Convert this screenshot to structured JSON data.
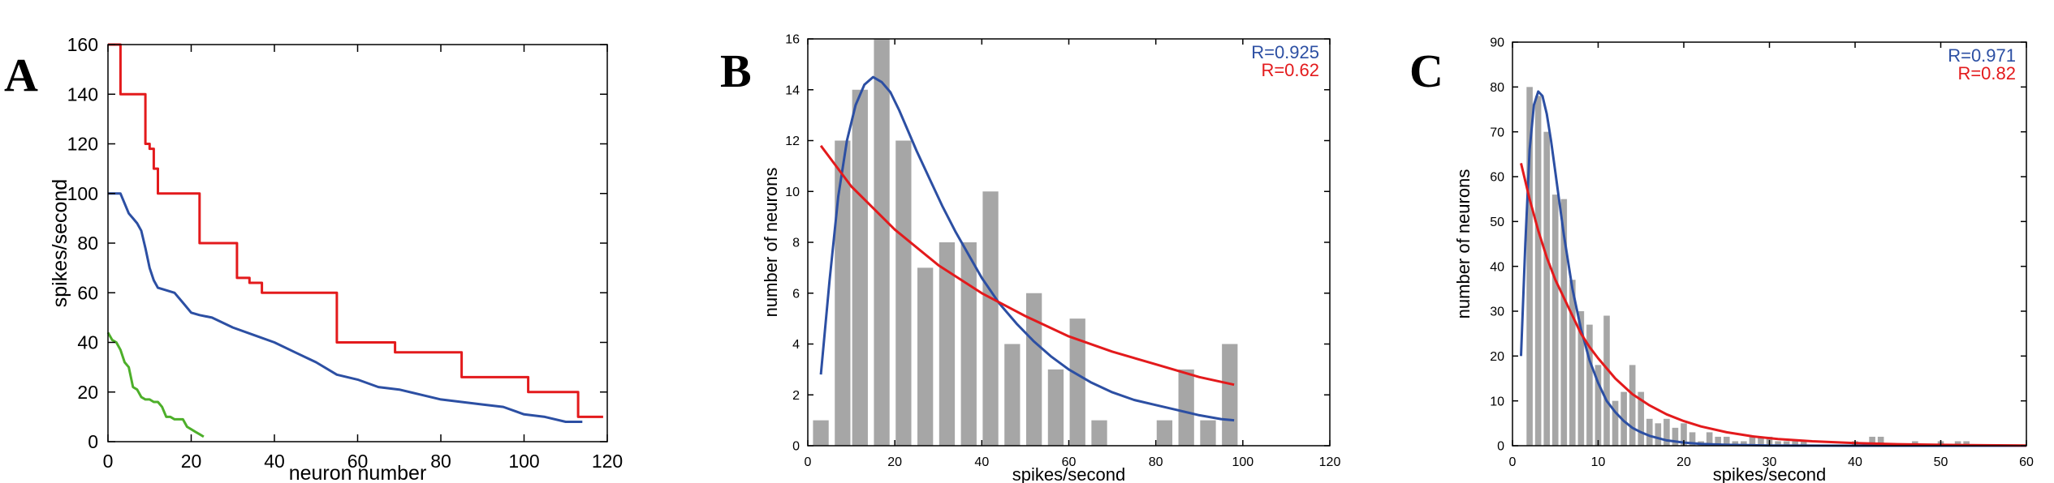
{
  "chart_data": [
    {
      "panel": "A",
      "type": "line",
      "xlabel": "neuron number",
      "ylabel": "spikes/second",
      "xlim": [
        0,
        120
      ],
      "ylim": [
        0,
        160
      ],
      "xticks": [
        0,
        20,
        40,
        60,
        80,
        100,
        120
      ],
      "yticks": [
        0,
        20,
        40,
        60,
        80,
        100,
        120,
        140,
        160
      ],
      "grid": false,
      "series": [
        {
          "color": "#e31a1c",
          "x": [
            0,
            3,
            3,
            9,
            9,
            10,
            10,
            11,
            11,
            12,
            12,
            22,
            22,
            31,
            31,
            34,
            34,
            37,
            37,
            55,
            55,
            69,
            69,
            85,
            85,
            101,
            101,
            113,
            113,
            119
          ],
          "y": [
            160,
            160,
            140,
            140,
            120,
            120,
            118,
            118,
            110,
            110,
            100,
            100,
            80,
            80,
            66,
            66,
            64,
            64,
            60,
            60,
            40,
            40,
            36,
            36,
            26,
            26,
            20,
            20,
            10,
            10
          ]
        },
        {
          "color": "#2c4fa3",
          "x": [
            0,
            3,
            5,
            6,
            7,
            8,
            9,
            10,
            11,
            12,
            14,
            16,
            18,
            20,
            22,
            25,
            30,
            35,
            40,
            45,
            50,
            55,
            60,
            65,
            70,
            75,
            80,
            85,
            90,
            95,
            100,
            105,
            110,
            114
          ],
          "y": [
            100,
            100,
            92,
            90,
            88,
            85,
            78,
            70,
            65,
            62,
            61,
            60,
            56,
            52,
            51,
            50,
            46,
            43,
            40,
            36,
            32,
            27,
            25,
            22,
            21,
            19,
            17,
            16,
            15,
            14,
            11,
            10,
            8,
            8
          ]
        },
        {
          "color": "#4daf2a",
          "x": [
            0,
            1,
            2,
            3,
            4,
            5,
            6,
            7,
            8,
            9,
            10,
            11,
            12,
            13,
            14,
            15,
            16,
            17,
            18,
            19,
            20,
            21,
            22,
            23
          ],
          "y": [
            44,
            41,
            40,
            37,
            32,
            30,
            22,
            21,
            18,
            17,
            17,
            16,
            16,
            14,
            10,
            10,
            9,
            9,
            9,
            6,
            5,
            4,
            3,
            2
          ]
        }
      ]
    },
    {
      "panel": "B",
      "type": "bar",
      "xlabel": "spikes/second",
      "ylabel": "number of neurons",
      "xlim": [
        0,
        120
      ],
      "ylim": [
        0,
        16
      ],
      "xticks": [
        0,
        20,
        40,
        60,
        80,
        100,
        120
      ],
      "yticks": [
        0,
        2,
        4,
        6,
        8,
        10,
        12,
        14,
        16
      ],
      "grid": false,
      "bar_color": "#a6a6a6",
      "bars": {
        "x": [
          3,
          8,
          12,
          17,
          22,
          27,
          32,
          37,
          42,
          47,
          52,
          57,
          62,
          67,
          72,
          77,
          82,
          87,
          92,
          97
        ],
        "values": [
          1,
          12,
          14,
          16,
          12,
          7,
          8,
          8,
          10,
          4,
          6,
          3,
          5,
          1,
          0,
          0,
          1,
          3,
          1,
          4
        ]
      },
      "fits": [
        {
          "label": "R=0.925",
          "color": "#2c4fa3",
          "x": [
            3,
            5,
            7,
            9,
            11,
            13,
            15,
            17,
            19,
            21,
            23,
            25,
            28,
            31,
            34,
            37,
            40,
            44,
            48,
            52,
            56,
            60,
            65,
            70,
            75,
            80,
            85,
            90,
            95,
            98
          ],
          "y": [
            2.8,
            6.5,
            9.8,
            12.0,
            13.4,
            14.2,
            14.5,
            14.3,
            13.9,
            13.2,
            12.4,
            11.6,
            10.5,
            9.4,
            8.4,
            7.5,
            6.6,
            5.6,
            4.8,
            4.1,
            3.5,
            3.0,
            2.5,
            2.1,
            1.8,
            1.6,
            1.4,
            1.2,
            1.05,
            1.0
          ]
        },
        {
          "label": "R=0.62",
          "color": "#e31a1c",
          "x": [
            3,
            10,
            20,
            30,
            40,
            50,
            60,
            70,
            80,
            90,
            98
          ],
          "y": [
            11.8,
            10.2,
            8.5,
            7.1,
            6.0,
            5.1,
            4.3,
            3.7,
            3.2,
            2.7,
            2.4
          ]
        }
      ]
    },
    {
      "panel": "C",
      "type": "bar",
      "xlabel": "spikes/second",
      "ylabel": "number of neurons",
      "xlim": [
        0,
        60
      ],
      "ylim": [
        0,
        90
      ],
      "xticks": [
        0,
        10,
        20,
        30,
        40,
        50,
        60
      ],
      "yticks": [
        0,
        10,
        20,
        30,
        40,
        50,
        60,
        70,
        80,
        90
      ],
      "grid": false,
      "bar_color": "#a6a6a6",
      "bars": {
        "x": [
          2,
          3,
          4,
          5,
          6,
          7,
          8,
          9,
          10,
          11,
          12,
          13,
          14,
          15,
          16,
          17,
          18,
          19,
          20,
          21,
          22,
          23,
          24,
          25,
          26,
          27,
          28,
          29,
          30,
          31,
          32,
          33,
          34,
          35,
          36,
          37,
          38,
          39,
          40,
          41,
          42,
          43,
          44,
          45,
          46,
          47,
          48,
          49,
          50,
          51,
          52,
          53
        ],
        "values": [
          80,
          78,
          70,
          56,
          55,
          37,
          30,
          27,
          18,
          29,
          10,
          12,
          18,
          12,
          6,
          5,
          6,
          4,
          5,
          3,
          1,
          3,
          2,
          2,
          1,
          1,
          2,
          2,
          2,
          1,
          1,
          1,
          1,
          0,
          0,
          0,
          0,
          0,
          1,
          0,
          2,
          2,
          0,
          0,
          0,
          1,
          0,
          0,
          1,
          0,
          1,
          1
        ]
      },
      "fits": [
        {
          "label": "R=0.971",
          "color": "#2c4fa3",
          "x": [
            1,
            1.5,
            2,
            2.5,
            3,
            3.5,
            4,
            4.5,
            5,
            5.5,
            6,
            7,
            8,
            9,
            10,
            11,
            12,
            13,
            14,
            15,
            16,
            18,
            20,
            22,
            25,
            30,
            35,
            40,
            45,
            50,
            55,
            60
          ],
          "y": [
            20,
            45,
            66,
            76,
            79,
            78,
            74,
            68,
            61,
            54,
            47,
            35,
            26,
            19,
            14,
            10,
            7.5,
            5.5,
            4,
            3,
            2.2,
            1.2,
            0.7,
            0.4,
            0.2,
            0.05,
            0.02,
            0,
            0,
            0,
            0,
            0
          ]
        },
        {
          "label": "R=0.82",
          "color": "#e31a1c",
          "x": [
            1,
            2,
            3,
            4,
            5,
            6,
            7,
            8,
            9,
            10,
            12,
            14,
            16,
            18,
            20,
            22,
            25,
            28,
            31,
            35,
            40,
            45,
            50,
            55,
            60
          ],
          "y": [
            63,
            55,
            48,
            42,
            37,
            33,
            29,
            25,
            22,
            19.5,
            15,
            11.5,
            9,
            7,
            5.5,
            4.3,
            3,
            2.1,
            1.5,
            1,
            0.6,
            0.35,
            0.2,
            0.1,
            0.05
          ]
        }
      ]
    }
  ]
}
